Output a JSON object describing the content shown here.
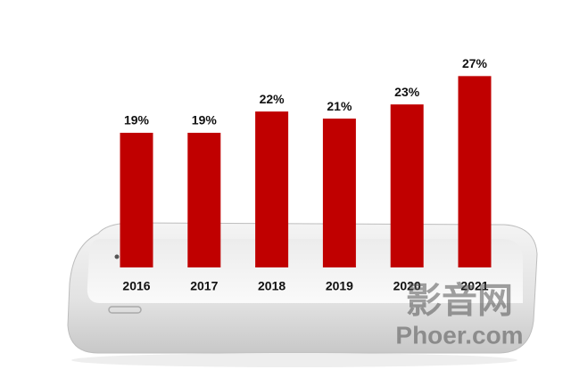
{
  "chart_data": {
    "type": "bar",
    "categories": [
      "2016",
      "2017",
      "2018",
      "2019",
      "2020",
      "2021"
    ],
    "values": [
      19,
      19,
      22,
      21,
      23,
      27
    ],
    "value_labels": [
      "19%",
      "19%",
      "22%",
      "21%",
      "23%",
      "27%"
    ],
    "color": "#c00000"
  },
  "watermark": {
    "title": "影音网",
    "site": "Phoer.com"
  }
}
